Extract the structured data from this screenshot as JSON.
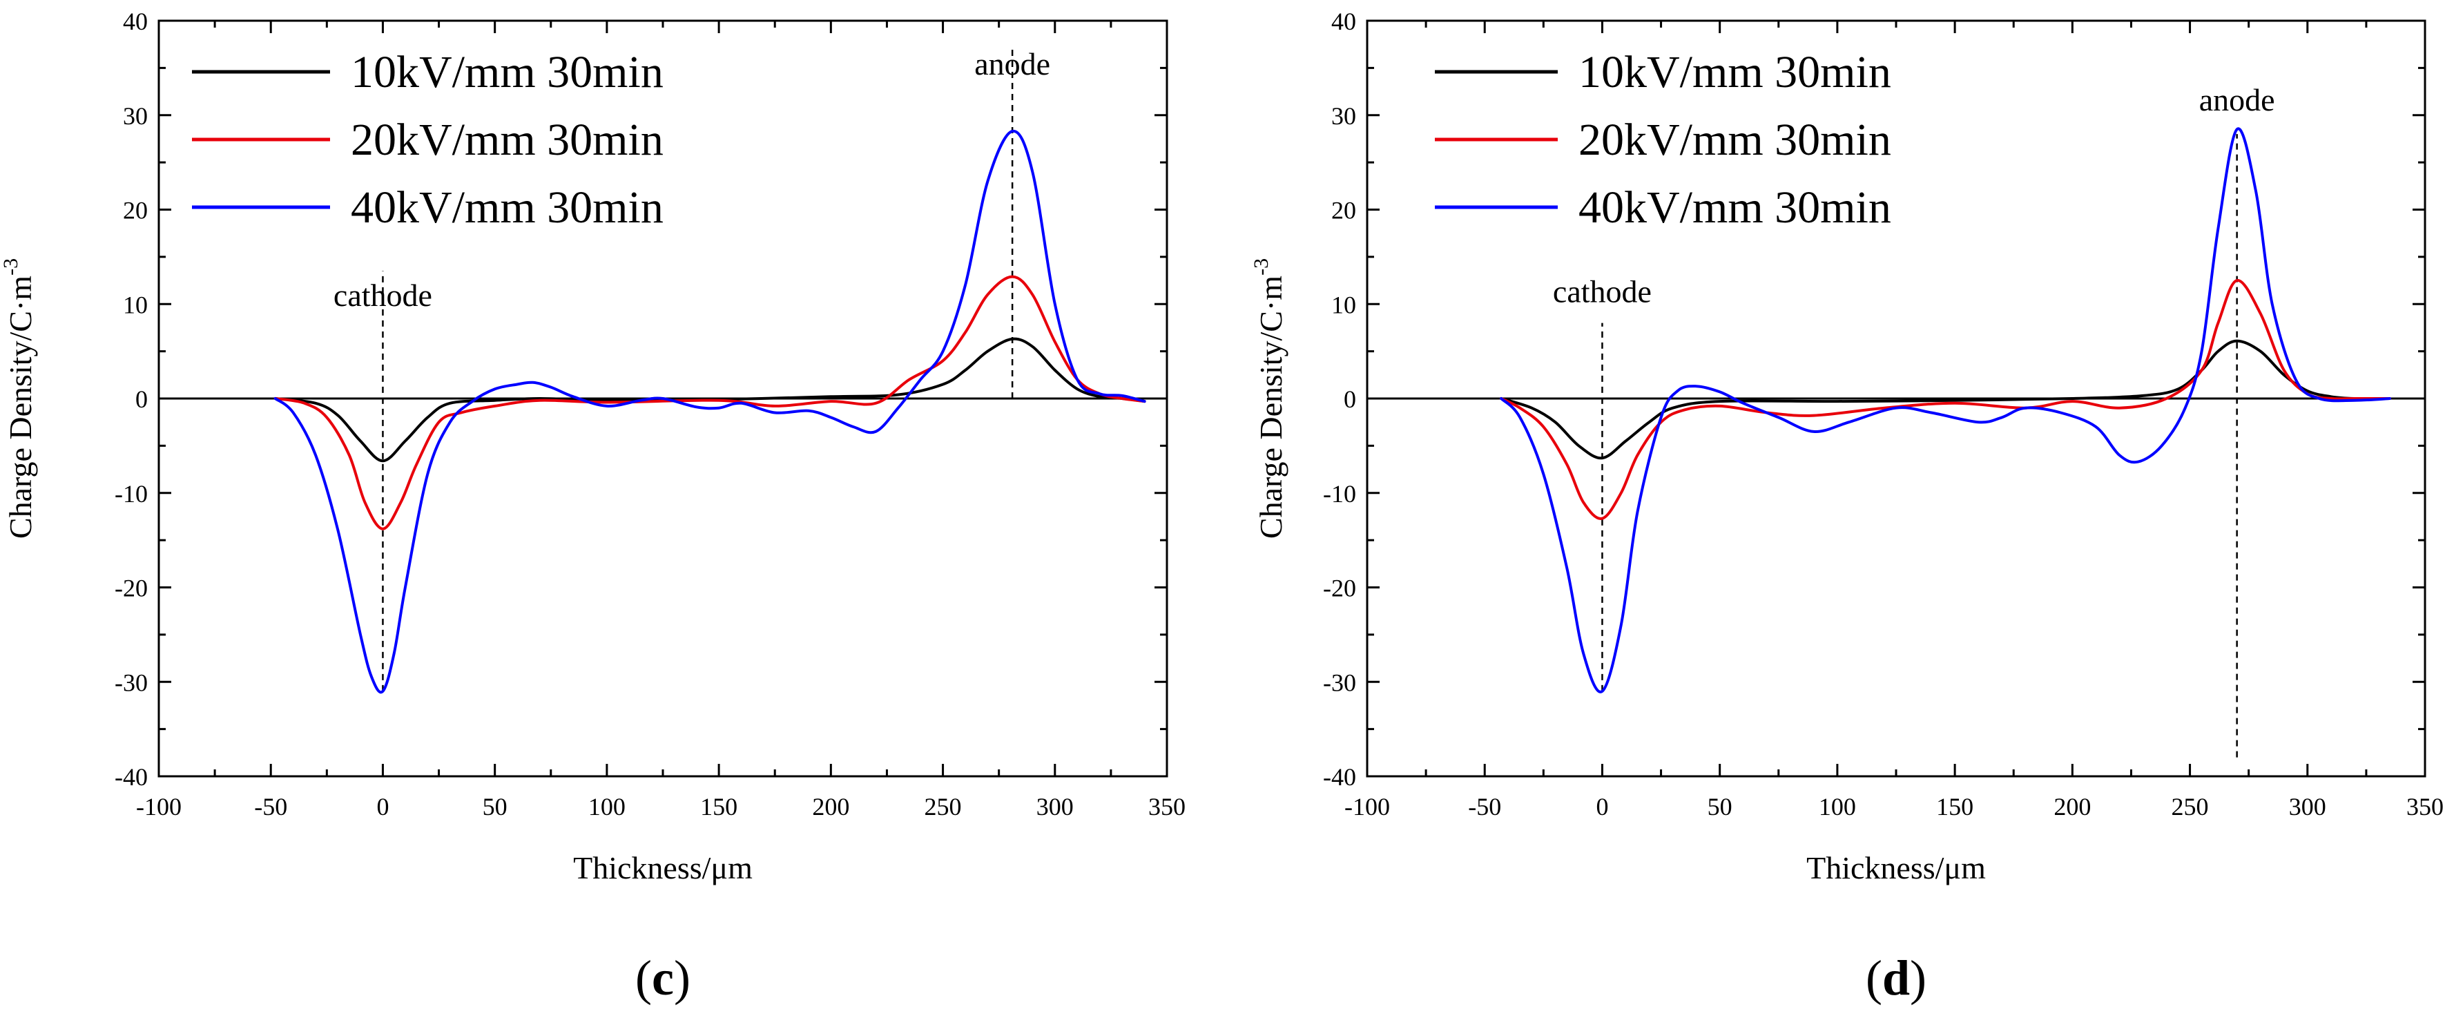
{
  "chart_data": [
    {
      "type": "line",
      "panel_label": "c",
      "xlabel": "Thickness/μm",
      "ylabel": "Charge Density/C·m",
      "ylabel_exponent": "-3",
      "xlim": [
        -100,
        350
      ],
      "ylim": [
        -40,
        40
      ],
      "xticks": [
        -100,
        -50,
        0,
        50,
        100,
        150,
        200,
        250,
        300,
        350
      ],
      "yticks": [
        -40,
        -30,
        -20,
        -10,
        0,
        10,
        20,
        30,
        40
      ],
      "colors": {
        "10kV": "#000000",
        "20kV": "#e8000b",
        "40kV": "#0000ff"
      },
      "legend_position": "top-left",
      "annotations": [
        {
          "text": "cathode",
          "x": 0,
          "line_from": -31,
          "line_to": 13.5,
          "label_y": 9.8
        },
        {
          "text": "anode",
          "x": 281,
          "line_from": 0,
          "line_to": 37,
          "label_y": 34.3
        }
      ],
      "series": [
        {
          "name": "10kV/mm 30min",
          "x": [
            -48,
            -30,
            -20,
            -10,
            0,
            10,
            20,
            30,
            50,
            70,
            100,
            150,
            200,
            230,
            250,
            260,
            270,
            281,
            290,
            300,
            310,
            320,
            330,
            340
          ],
          "y": [
            0,
            -0.5,
            -1.8,
            -4.5,
            -6.6,
            -4.5,
            -2,
            -0.5,
            -0.2,
            0,
            -0.2,
            -0.1,
            0.2,
            0.4,
            1.5,
            3,
            5,
            6.3,
            5.5,
            3,
            1,
            0.2,
            0,
            -0.3
          ]
        },
        {
          "name": "20kV/mm 30min",
          "x": [
            -48,
            -35,
            -25,
            -15,
            -8,
            0,
            8,
            15,
            25,
            35,
            50,
            70,
            100,
            150,
            175,
            200,
            220,
            235,
            250,
            260,
            270,
            281,
            290,
            300,
            310,
            320,
            330,
            340
          ],
          "y": [
            0,
            -0.5,
            -2,
            -6,
            -11,
            -13.8,
            -11,
            -7,
            -2.5,
            -1.5,
            -0.8,
            -0.2,
            -0.4,
            -0.2,
            -0.8,
            -0.3,
            -0.5,
            2,
            4,
            7,
            11,
            12.9,
            11,
            6,
            2,
            0.5,
            0,
            -0.3
          ]
        },
        {
          "name": "40kV/mm 30min",
          "x": [
            -48,
            -40,
            -30,
            -20,
            -10,
            -5,
            0,
            5,
            10,
            20,
            30,
            40,
            50,
            60,
            67,
            75,
            85,
            100,
            115,
            125,
            140,
            150,
            160,
            175,
            190,
            200,
            210,
            220,
            230,
            240,
            250,
            260,
            270,
            281,
            290,
            300,
            310,
            320,
            330,
            340
          ],
          "y": [
            0,
            -1.5,
            -6,
            -14,
            -25,
            -29.5,
            -31,
            -27,
            -20,
            -8,
            -2.5,
            -0.3,
            1,
            1.5,
            1.7,
            1.2,
            0.2,
            -0.8,
            -0.2,
            0,
            -0.9,
            -1,
            -0.5,
            -1.5,
            -1.3,
            -2,
            -3,
            -3.5,
            -1,
            2,
            5,
            12,
            23,
            28.3,
            24,
            10,
            2,
            0.5,
            0.3,
            -0.3
          ]
        }
      ]
    },
    {
      "type": "line",
      "panel_label": "d",
      "xlabel": "Thickness/μm",
      "ylabel": "Charge Density/C·m",
      "ylabel_exponent": "-3",
      "xlim": [
        -100,
        350
      ],
      "ylim": [
        -40,
        40
      ],
      "xticks": [
        -100,
        -50,
        0,
        50,
        100,
        150,
        200,
        250,
        300,
        350
      ],
      "yticks": [
        -40,
        -30,
        -20,
        -10,
        0,
        10,
        20,
        30,
        40
      ],
      "colors": {
        "10kV": "#000000",
        "20kV": "#e8000b",
        "40kV": "#0000ff"
      },
      "legend_position": "top-left",
      "annotations": [
        {
          "text": "cathode",
          "x": 0,
          "line_from": -31,
          "line_to": 8,
          "label_y": 10.2
        },
        {
          "text": "anode",
          "x": 270,
          "line_from": -38,
          "line_to": 28,
          "label_y": 30.5
        }
      ],
      "series": [
        {
          "name": "10kV/mm 30min",
          "x": [
            -43,
            -30,
            -20,
            -10,
            0,
            10,
            20,
            30,
            50,
            100,
            150,
            200,
            230,
            245,
            255,
            262,
            270,
            280,
            290,
            300,
            310,
            320,
            335
          ],
          "y": [
            0,
            -1,
            -2.5,
            -5,
            -6.3,
            -4.5,
            -2.5,
            -1,
            -0.3,
            -0.3,
            -0.2,
            0,
            0.3,
            1,
            3,
            5,
            6.1,
            5,
            2.5,
            0.8,
            0.2,
            0,
            0
          ]
        },
        {
          "name": "20kV/mm 30min",
          "x": [
            -43,
            -35,
            -25,
            -15,
            -8,
            0,
            8,
            15,
            25,
            35,
            50,
            70,
            90,
            120,
            150,
            180,
            200,
            220,
            240,
            255,
            262,
            270,
            280,
            290,
            300,
            310,
            320,
            335
          ],
          "y": [
            0,
            -1,
            -3,
            -7,
            -11,
            -12.7,
            -10,
            -6,
            -2.5,
            -1.2,
            -0.8,
            -1.5,
            -1.8,
            -1,
            -0.5,
            -1,
            -0.3,
            -1,
            0,
            3,
            8,
            12.5,
            9,
            3,
            0.5,
            0,
            0,
            0
          ]
        },
        {
          "name": "40kV/mm 30min",
          "x": [
            -43,
            -35,
            -25,
            -15,
            -8,
            0,
            8,
            15,
            25,
            32,
            40,
            50,
            60,
            75,
            90,
            105,
            125,
            140,
            160,
            170,
            180,
            195,
            210,
            220,
            228,
            238,
            248,
            255,
            262,
            270,
            278,
            285,
            295,
            305,
            320,
            335
          ],
          "y": [
            0,
            -2,
            -8,
            -18,
            -27,
            -31,
            -24,
            -12,
            -2,
            0.8,
            1.3,
            0.7,
            -0.5,
            -2,
            -3.5,
            -2.5,
            -1,
            -1.5,
            -2.5,
            -2,
            -1,
            -1.5,
            -3,
            -6,
            -6.7,
            -5,
            -1,
            5,
            18,
            28.5,
            22,
            10,
            2,
            0,
            -0.2,
            0
          ]
        }
      ]
    }
  ]
}
